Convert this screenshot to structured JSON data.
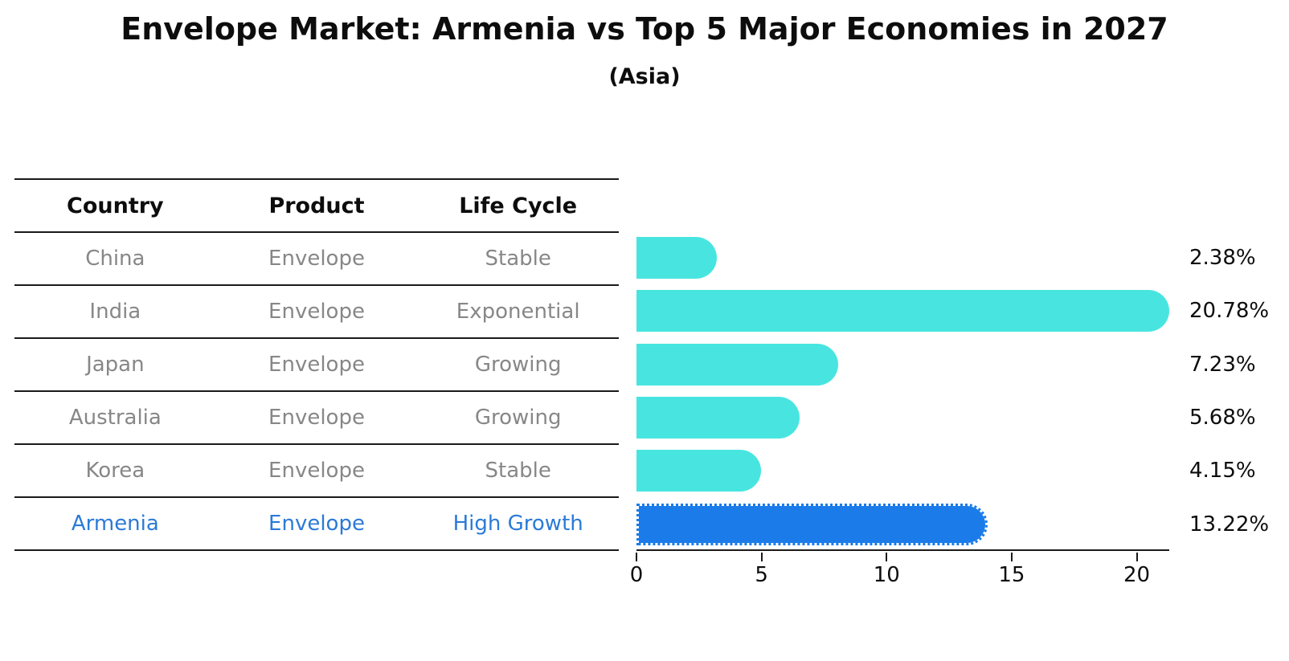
{
  "title": "Envelope Market: Armenia vs Top 5 Major Economies in 2027",
  "subtitle": "(Asia)",
  "table": {
    "headers": [
      "Country",
      "Product",
      "Life Cycle"
    ],
    "rows": [
      {
        "country": "China",
        "product": "Envelope",
        "life_cycle": "Stable",
        "highlight": false
      },
      {
        "country": "India",
        "product": "Envelope",
        "life_cycle": "Exponential",
        "highlight": false
      },
      {
        "country": "Japan",
        "product": "Envelope",
        "life_cycle": "Growing",
        "highlight": false
      },
      {
        "country": "Australia",
        "product": "Envelope",
        "life_cycle": "Growing",
        "highlight": false
      },
      {
        "country": "Korea",
        "product": "Envelope",
        "life_cycle": "Stable",
        "highlight": false
      },
      {
        "country": "Armenia",
        "product": "Envelope",
        "life_cycle": "High Growth",
        "highlight": true
      }
    ]
  },
  "chart_data": {
    "type": "bar",
    "orientation": "horizontal",
    "title": "Envelope Market: Armenia vs Top 5 Major Economies in 2027",
    "subtitle": "(Asia)",
    "categories": [
      "China",
      "India",
      "Japan",
      "Australia",
      "Korea",
      "Armenia"
    ],
    "values": [
      2.38,
      20.78,
      7.23,
      5.68,
      4.15,
      13.22
    ],
    "value_labels": [
      "2.38%",
      "20.78%",
      "7.23%",
      "5.68%",
      "4.15%",
      "13.22%"
    ],
    "xlabel": "",
    "ylabel": "",
    "xlim": [
      0,
      21.3
    ],
    "xticks": [
      0,
      5,
      10,
      15,
      20
    ],
    "grid": false,
    "legend": false,
    "bar_color": "#48e5e0",
    "highlight_color": "#1b7ce9",
    "highlight_index": 5,
    "highlight_style": "dotted-border"
  },
  "colors": {
    "bar_cyan": "#48e5e0",
    "bar_blue": "#1b7ce9",
    "text_gray": "#878787",
    "text_blue": "#2b7ad7",
    "line": "#1a1a1a",
    "background": "#ffffff"
  }
}
